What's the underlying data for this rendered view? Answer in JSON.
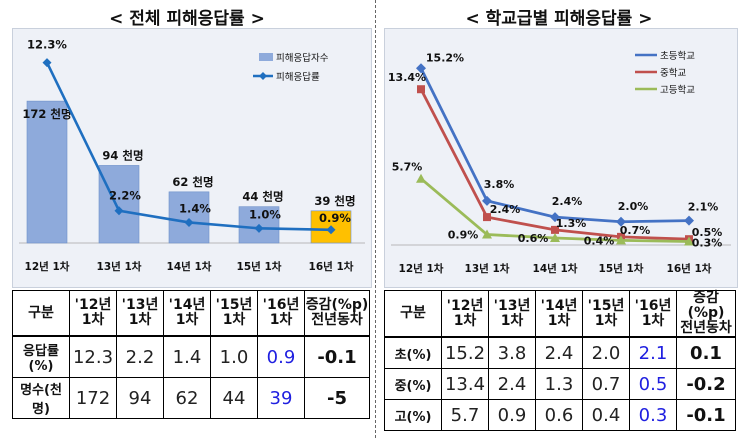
{
  "left": {
    "title": "< 전체 피해응답률 >",
    "chart_data": {
      "type": "bar",
      "categories": [
        "12년 1차",
        "13년 1차",
        "14년 1차",
        "15년 1차",
        "16년 1차"
      ],
      "series": [
        {
          "name": "피해응답자수",
          "values": [
            172,
            94,
            62,
            44,
            39
          ],
          "labels": [
            "172 천명",
            "94 천명",
            "62 천명",
            "44 천명",
            "39 천명"
          ],
          "color": "#8eaadb",
          "highlight_color": "#ffc000"
        },
        {
          "name": "피해응답률",
          "type": "line",
          "values": [
            12.3,
            2.2,
            1.4,
            1.0,
            0.9
          ],
          "labels": [
            "12.3%",
            "2.2%",
            "1.4%",
            "1.0%",
            "0.9%"
          ],
          "color": "#1f6fc0"
        }
      ],
      "bar_ylim": [
        0,
        240
      ],
      "line_ylim": [
        0,
        13.5
      ],
      "legend": "top-right"
    },
    "table": {
      "headers": [
        "구분",
        "'12년\n1차",
        "'13년\n1차",
        "'14년\n1차",
        "'15년\n1차",
        "'16년\n1차",
        "증감(%p)\n전년동차"
      ],
      "rows": [
        {
          "label": "응답률(%)",
          "values": [
            "12.3",
            "2.2",
            "1.4",
            "1.0",
            "0.9",
            "-0.1"
          ]
        },
        {
          "label": "명수(천명)",
          "values": [
            "172",
            "94",
            "62",
            "44",
            "39",
            "-5"
          ]
        }
      ]
    }
  },
  "right": {
    "title": "< 학교급별 피해응답률 >",
    "chart_data": {
      "type": "line",
      "categories": [
        "12년 1차",
        "13년 1차",
        "14년 1차",
        "15년 1차",
        "16년 1차"
      ],
      "ylim": [
        0,
        16
      ],
      "series": [
        {
          "name": "초등학교",
          "values": [
            15.2,
            3.8,
            2.4,
            2.0,
            2.1
          ],
          "labels": [
            "15.2%",
            "3.8%",
            "2.4%",
            "2.0%",
            "2.1%"
          ],
          "color": "#4472c4",
          "marker": "diamond"
        },
        {
          "name": "중학교",
          "values": [
            13.4,
            2.4,
            1.3,
            0.7,
            0.5
          ],
          "labels": [
            "13.4%",
            "2.4%",
            "1.3%",
            "0.7%",
            "0.5%"
          ],
          "color": "#c0504d",
          "marker": "square"
        },
        {
          "name": "고등학교",
          "values": [
            5.7,
            0.9,
            0.6,
            0.4,
            0.3
          ],
          "labels": [
            "5.7%",
            "0.9%",
            "0.6%",
            "0.4%",
            "0.3%"
          ],
          "color": "#9bbb59",
          "marker": "triangle"
        }
      ],
      "legend": "top-right"
    },
    "table": {
      "headers": [
        "구분",
        "'12년\n1차",
        "'13년\n1차",
        "'14년\n1차",
        "'15년\n1차",
        "'16년\n1차",
        "증감(%p)\n전년동차"
      ],
      "rows": [
        {
          "label": "초(%)",
          "values": [
            "15.2",
            "3.8",
            "2.4",
            "2.0",
            "2.1",
            "0.1"
          ]
        },
        {
          "label": "중(%)",
          "values": [
            "13.4",
            "2.4",
            "1.3",
            "0.7",
            "0.5",
            "-0.2"
          ]
        },
        {
          "label": "고(%)",
          "values": [
            "5.7",
            "0.9",
            "0.6",
            "0.4",
            "0.3",
            "-0.1"
          ]
        }
      ]
    }
  }
}
